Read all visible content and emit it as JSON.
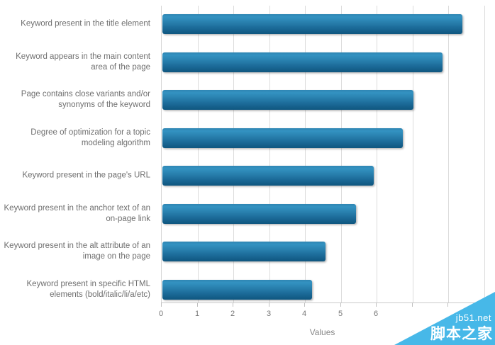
{
  "chart_data": {
    "type": "bar",
    "orientation": "horizontal",
    "title": "",
    "xlabel": "Values",
    "ylabel": "",
    "categories": [
      "Keyword present in the title element",
      "Keyword appears in the main content area of the page",
      "Page contains close variants and/or synonyms of the keyword",
      "Degree of optimization for a topic modeling algorithm",
      "Keyword present in the page's URL",
      "Keyword present in the anchor text of an on-page link",
      "Keyword present in the alt attribute of an image on the page",
      "Keyword present in specific HTML elements (bold/italic/li/a/etc)"
    ],
    "values": [
      8.37,
      7.82,
      7.0,
      6.72,
      5.9,
      5.41,
      4.55,
      4.18
    ],
    "x_tick_labels": [
      "0",
      "1",
      "2",
      "3",
      "4",
      "5",
      "6"
    ],
    "x_ticks_marked": 9,
    "xlim": [
      0,
      9
    ],
    "grid": true,
    "legend": false,
    "bar_color_gradient_top": "#3392c1",
    "bar_color_gradient_bottom": "#0f567f",
    "gridline_color": "#dcdcdc",
    "label_color": "#6f6f6f"
  },
  "watermark": {
    "line1": "jb51.net",
    "line2": "脚本之家",
    "triangle_color": "#47b8e8"
  }
}
